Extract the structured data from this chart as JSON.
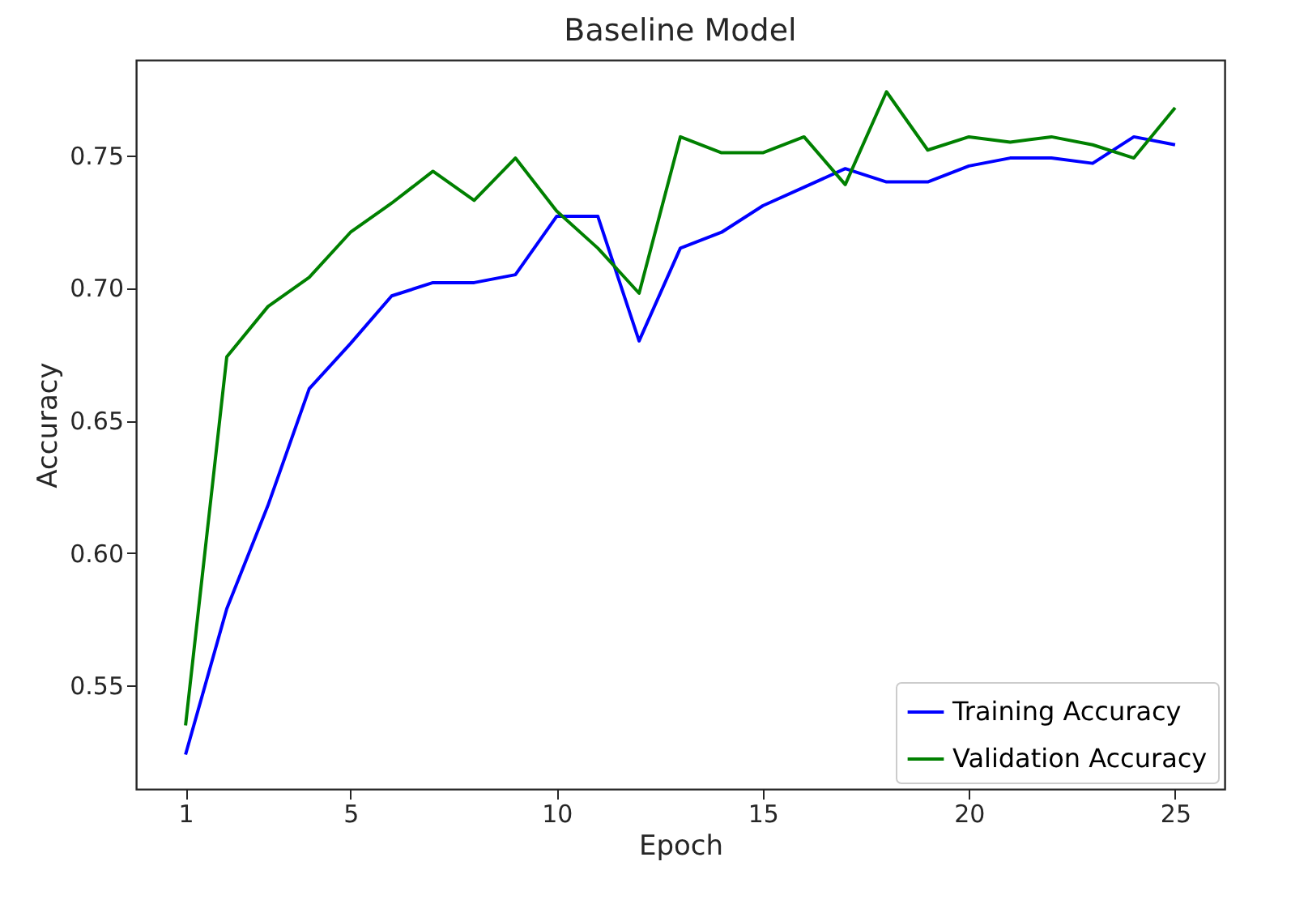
{
  "chart_data": {
    "type": "line",
    "title": "Baseline Model",
    "xlabel": "Epoch",
    "ylabel": "Accuracy",
    "x": [
      1,
      2,
      3,
      4,
      5,
      6,
      7,
      8,
      9,
      10,
      11,
      12,
      13,
      14,
      15,
      16,
      17,
      18,
      19,
      20,
      21,
      22,
      23,
      24,
      25
    ],
    "series": [
      {
        "name": "Training Accuracy",
        "color": "#0000ff",
        "values": [
          0.524,
          0.579,
          0.618,
          0.662,
          0.679,
          0.697,
          0.702,
          0.702,
          0.705,
          0.727,
          0.727,
          0.68,
          0.715,
          0.721,
          0.731,
          0.738,
          0.745,
          0.74,
          0.74,
          0.746,
          0.749,
          0.749,
          0.747,
          0.757,
          0.754
        ]
      },
      {
        "name": "Validation Accuracy",
        "color": "#008000",
        "values": [
          0.535,
          0.674,
          0.693,
          0.704,
          0.721,
          0.732,
          0.744,
          0.733,
          0.749,
          0.729,
          0.715,
          0.698,
          0.757,
          0.751,
          0.751,
          0.757,
          0.739,
          0.774,
          0.752,
          0.757,
          0.755,
          0.757,
          0.754,
          0.749,
          0.768
        ]
      }
    ],
    "xlim": [
      -0.2,
      26.2
    ],
    "ylim": [
      0.511,
      0.786
    ],
    "xticks": [
      1,
      5,
      10,
      15,
      20,
      25
    ],
    "yticks": [
      {
        "value": 0.55,
        "label": "0.55"
      },
      {
        "value": 0.6,
        "label": "0.60"
      },
      {
        "value": 0.65,
        "label": "0.65"
      },
      {
        "value": 0.7,
        "label": "0.70"
      },
      {
        "value": 0.75,
        "label": "0.75"
      }
    ],
    "grid": false,
    "legend": "bottom right",
    "marker": "none",
    "line_style": "solid"
  }
}
